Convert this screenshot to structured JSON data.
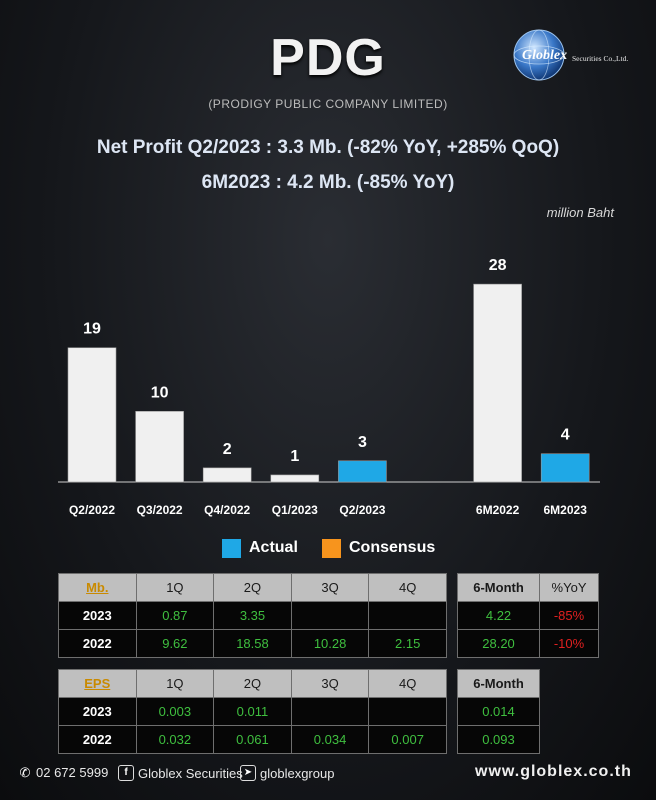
{
  "header": {
    "ticker": "PDG",
    "company": "(PRODIGY PUBLIC COMPANY LIMITED)",
    "logo_text": "Globlex",
    "logo_sub": "Securities Co.,Ltd.",
    "headline1": "Net Profit  Q2/2023 : 3.3 Mb. (-82% YoY, +285% QoQ)",
    "headline2": "6M2023 : 4.2 Mb. (-85% YoY)",
    "unit": "million Baht"
  },
  "colors": {
    "white_bar": "#f0f0f0",
    "actual": "#1fa8e6",
    "consensus": "#f7941d",
    "negative": "#e02020",
    "positive": "#3fbf3f"
  },
  "chart_data": {
    "type": "bar",
    "categories": [
      "Q2/2022",
      "Q3/2022",
      "Q4/2022",
      "Q1/2023",
      "Q2/2023",
      "",
      "6M2022",
      "6M2023"
    ],
    "values": [
      19,
      10,
      2,
      1,
      3,
      null,
      28,
      4
    ],
    "value_labels": [
      "19",
      "10",
      "2",
      "1",
      "3",
      "",
      "28",
      "4"
    ],
    "highlight": [
      false,
      false,
      false,
      false,
      true,
      false,
      false,
      true
    ],
    "ylim": [
      0,
      30
    ],
    "grid": false,
    "legend": [
      {
        "name": "Actual",
        "color": "#1fa8e6"
      },
      {
        "name": "Consensus",
        "color": "#f7941d"
      }
    ],
    "legend_position": "bottom"
  },
  "table_mb": {
    "header": [
      "Mb.",
      "1Q",
      "2Q",
      "3Q",
      "4Q"
    ],
    "rows": [
      {
        "year": "2023",
        "cells": [
          "0.87",
          "3.35",
          "",
          ""
        ]
      },
      {
        "year": "2022",
        "cells": [
          "9.62",
          "18.58",
          "10.28",
          "2.15"
        ]
      }
    ]
  },
  "table_mb_side": {
    "header": [
      "6-Month",
      "%YoY"
    ],
    "rows": [
      [
        "4.22",
        "-85%"
      ],
      [
        "28.20",
        "-10%"
      ]
    ]
  },
  "table_eps": {
    "header": [
      "EPS",
      "1Q",
      "2Q",
      "3Q",
      "4Q"
    ],
    "rows": [
      {
        "year": "2023",
        "cells": [
          "0.003",
          "0.011",
          "",
          ""
        ]
      },
      {
        "year": "2022",
        "cells": [
          "0.032",
          "0.061",
          "0.034",
          "0.007"
        ]
      }
    ]
  },
  "table_eps_side": {
    "header": [
      "6-Month"
    ],
    "rows": [
      [
        "0.014"
      ],
      [
        "0.093"
      ]
    ]
  },
  "footer": {
    "phone": "02 672 5999",
    "facebook": "Globlex Securities",
    "telegram": "globlexgroup",
    "website": "www.globlex.co.th"
  }
}
